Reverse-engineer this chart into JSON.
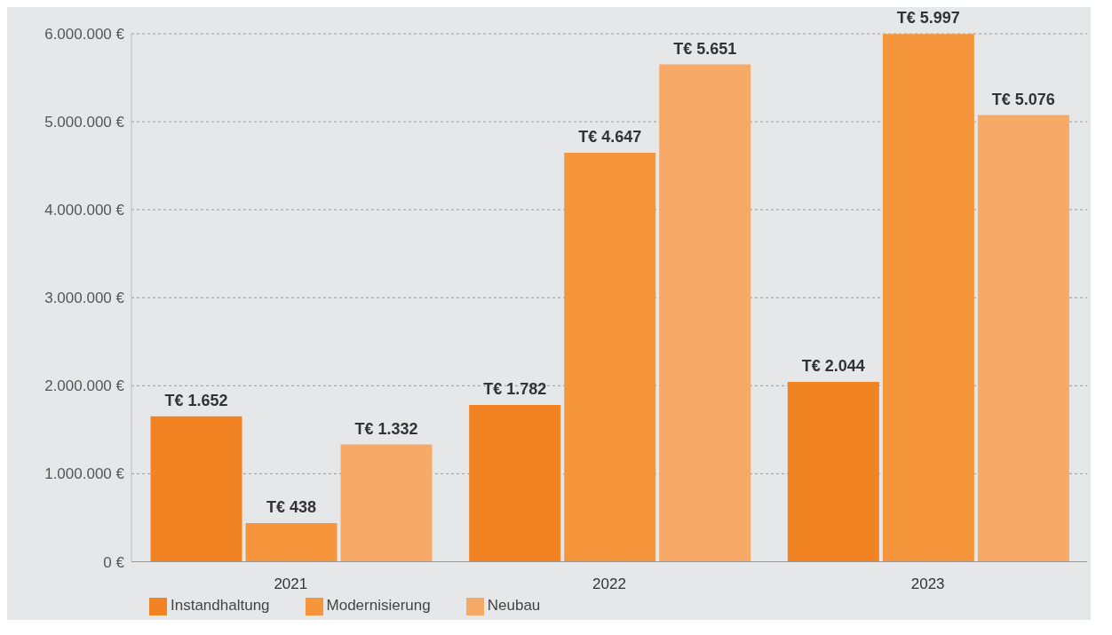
{
  "chart_data": {
    "type": "bar",
    "categories": [
      "2021",
      "2022",
      "2023"
    ],
    "series": [
      {
        "name": "Instandhaltung",
        "color": "#f28322",
        "values": [
          1652000,
          1782000,
          2044000
        ],
        "value_labels": [
          "T€ 1.652",
          "T€ 1.782",
          "T€ 2.044"
        ]
      },
      {
        "name": "Modernisierung",
        "color": "#f5963c",
        "values": [
          438000,
          4647000,
          5997000
        ],
        "value_labels": [
          "T€ 438",
          "T€ 4.647",
          "T€ 5.997"
        ]
      },
      {
        "name": "Neubau",
        "color": "#f7a967",
        "values": [
          1332000,
          5651000,
          5076000
        ],
        "value_labels": [
          "T€ 1.332",
          "T€ 5.651",
          "T€ 5.076"
        ]
      }
    ],
    "ylim": [
      0,
      6000000
    ],
    "yticks": [
      {
        "value": 0,
        "label": "0 €"
      },
      {
        "value": 1000000,
        "label": "1.000.000 €"
      },
      {
        "value": 2000000,
        "label": "2.000.000 €"
      },
      {
        "value": 3000000,
        "label": "3.000.000 €"
      },
      {
        "value": 4000000,
        "label": "4.000.000 €"
      },
      {
        "value": 5000000,
        "label": "5.000.000 €"
      },
      {
        "value": 6000000,
        "label": "6.000.000 €"
      }
    ],
    "grid": "y",
    "legend": "bottom left"
  }
}
